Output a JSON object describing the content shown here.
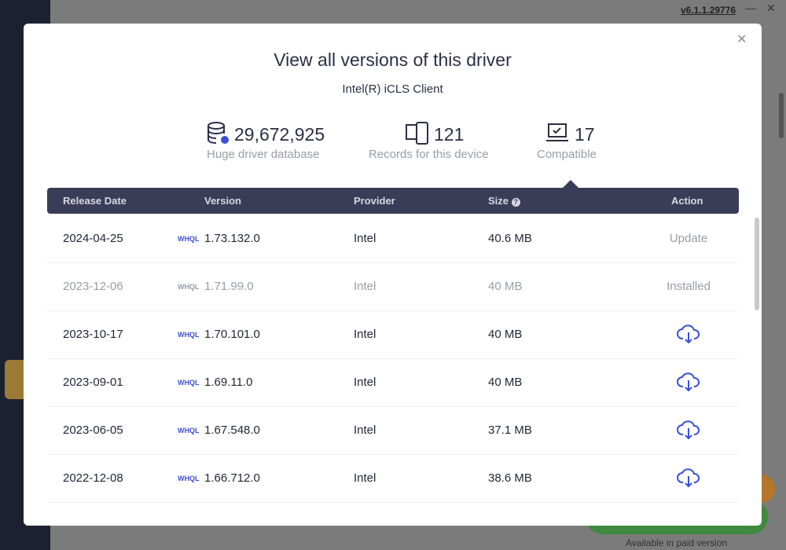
{
  "app": {
    "version": "v6.1.1.29776",
    "footer_note": "Available in paid version"
  },
  "dialog": {
    "title": "View all versions of this driver",
    "subtitle": "Intel(R) iCLS Client",
    "stats": [
      {
        "value": "29,672,925",
        "label": "Huge driver database"
      },
      {
        "value": "121",
        "label": "Records for this device"
      },
      {
        "value": "17",
        "label": "Compatible"
      }
    ]
  },
  "table": {
    "headers": [
      "Release Date",
      "Version",
      "Provider",
      "Size",
      "Action"
    ],
    "badge": "WHQL",
    "rows": [
      {
        "date": "2024-04-25",
        "version": "1.73.132.0",
        "provider": "Intel",
        "size": "40.6 MB",
        "action": "Update"
      },
      {
        "date": "2023-12-06",
        "version": "1.71.99.0",
        "provider": "Intel",
        "size": "40 MB",
        "action": "Installed"
      },
      {
        "date": "2023-10-17",
        "version": "1.70.101.0",
        "provider": "Intel",
        "size": "40 MB"
      },
      {
        "date": "2023-09-01",
        "version": "1.69.11.0",
        "provider": "Intel",
        "size": "40 MB"
      },
      {
        "date": "2023-06-05",
        "version": "1.67.548.0",
        "provider": "Intel",
        "size": "37.1 MB"
      },
      {
        "date": "2022-12-08",
        "version": "1.66.712.0",
        "provider": "Intel",
        "size": "38.6 MB"
      }
    ]
  }
}
